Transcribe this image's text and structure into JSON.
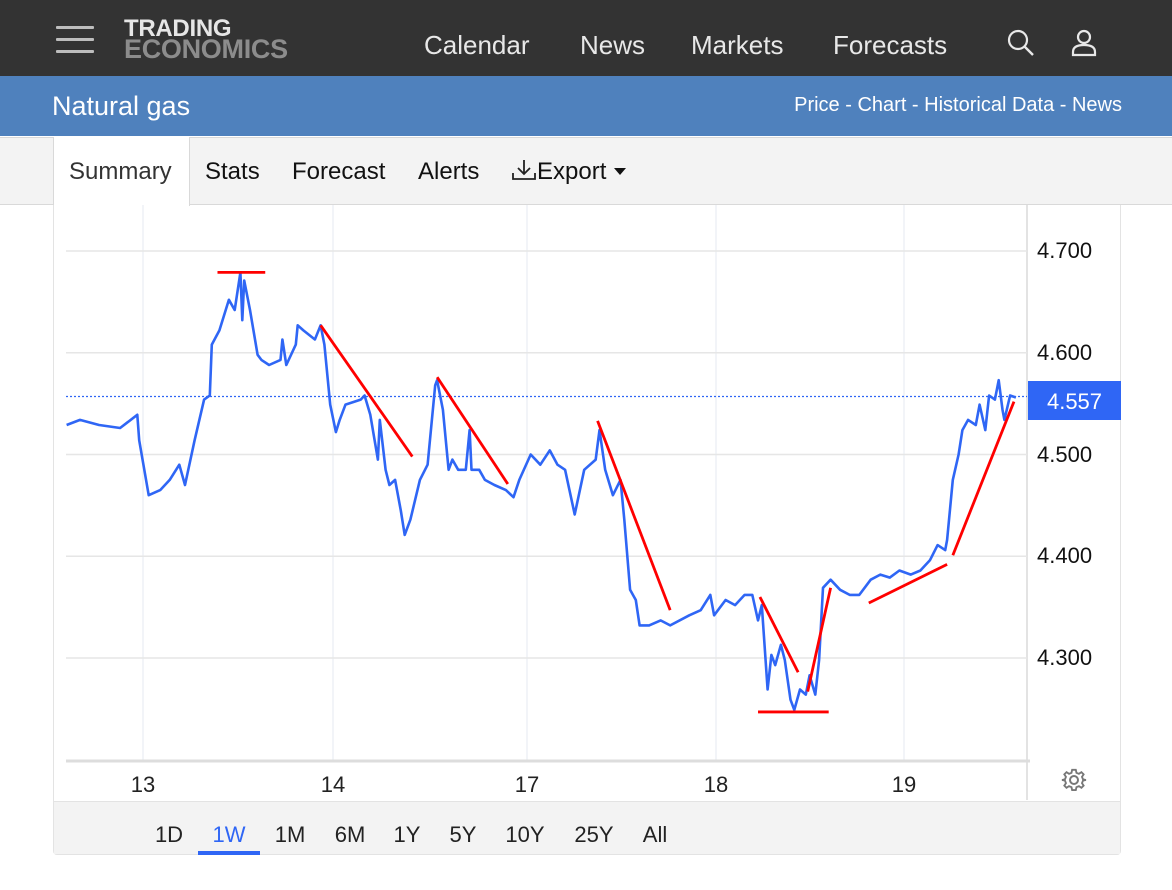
{
  "header": {
    "logo_line1": "TRADING",
    "logo_line2": "ECONOMICS",
    "nav": [
      "Calendar",
      "News",
      "Markets",
      "Forecasts"
    ],
    "icons": [
      "menu-icon",
      "search-icon",
      "user-icon"
    ]
  },
  "titlebar": {
    "title": "Natural gas",
    "links": [
      "Price",
      "Chart",
      "Historical Data",
      "News"
    ],
    "separator": " - "
  },
  "tabs": {
    "items": [
      "Summary",
      "Stats",
      "Forecast",
      "Alerts"
    ],
    "active": "Summary",
    "export_label": "Export"
  },
  "range": {
    "options": [
      "1D",
      "1W",
      "1M",
      "6M",
      "1Y",
      "5Y",
      "10Y",
      "25Y",
      "All"
    ],
    "active": "1W"
  },
  "colors": {
    "header": "#333333",
    "titlebar": "#4f81bd",
    "series": "#2f66f5",
    "annotation": "#ff0000"
  },
  "chart_data": {
    "type": "line",
    "x_ticks": [
      "13",
      "14",
      "17",
      "18",
      "19"
    ],
    "y_ticks": [
      "4.300",
      "4.400",
      "4.500",
      "4.600",
      "4.700"
    ],
    "ylim": [
      4.2,
      4.74
    ],
    "y_axis_side": "right",
    "grid": true,
    "last_value": "4.557",
    "series": [
      {
        "points": [
          [
            12.6,
            4.529
          ],
          [
            12.67,
            4.534
          ],
          [
            12.77,
            4.529
          ],
          [
            12.88,
            4.526
          ],
          [
            12.97,
            4.539
          ],
          [
            12.98,
            4.514
          ],
          [
            13.03,
            4.46
          ],
          [
            13.09,
            4.465
          ],
          [
            13.14,
            4.475
          ],
          [
            13.19,
            4.49
          ],
          [
            13.22,
            4.47
          ],
          [
            13.27,
            4.514
          ],
          [
            13.32,
            4.554
          ],
          [
            13.35,
            4.558
          ],
          [
            13.36,
            4.608
          ],
          [
            13.4,
            4.622
          ],
          [
            13.45,
            4.652
          ],
          [
            13.48,
            4.642
          ],
          [
            13.51,
            4.679
          ],
          [
            13.52,
            4.632
          ],
          [
            13.53,
            4.671
          ],
          [
            13.56,
            4.642
          ],
          [
            13.6,
            4.598
          ],
          [
            13.62,
            4.593
          ],
          [
            13.66,
            4.588
          ],
          [
            13.72,
            4.593
          ],
          [
            13.73,
            4.613
          ],
          [
            13.75,
            4.588
          ],
          [
            13.8,
            4.608
          ],
          [
            13.81,
            4.627
          ],
          [
            13.84,
            4.622
          ],
          [
            13.9,
            4.613
          ],
          [
            13.93,
            4.627
          ],
          [
            13.95,
            4.608
          ],
          [
            13.98,
            4.549
          ],
          [
            14.01,
            4.522
          ],
          [
            14.03,
            4.534
          ],
          [
            14.06,
            4.549
          ],
          [
            14.14,
            4.554
          ],
          [
            14.16,
            4.558
          ],
          [
            14.19,
            4.539
          ],
          [
            14.23,
            4.495
          ],
          [
            14.24,
            4.534
          ],
          [
            14.27,
            4.485
          ],
          [
            14.29,
            4.47
          ],
          [
            14.32,
            4.475
          ],
          [
            14.35,
            4.445
          ],
          [
            14.37,
            4.421
          ],
          [
            14.4,
            4.436
          ],
          [
            14.45,
            4.475
          ],
          [
            14.49,
            4.49
          ],
          [
            14.53,
            4.568
          ],
          [
            14.54,
            4.573
          ],
          [
            14.57,
            4.544
          ],
          [
            14.6,
            4.485
          ],
          [
            14.62,
            4.495
          ],
          [
            14.65,
            4.485
          ],
          [
            14.69,
            4.485
          ],
          [
            14.71,
            4.524
          ],
          [
            14.72,
            4.485
          ],
          [
            14.76,
            4.485
          ],
          [
            14.79,
            4.475
          ],
          [
            14.84,
            4.47
          ],
          [
            14.9,
            4.465
          ],
          [
            14.94,
            4.458
          ],
          [
            14.97,
            4.475
          ],
          [
            17.03,
            4.5
          ],
          [
            17.08,
            4.49
          ],
          [
            17.13,
            4.504
          ],
          [
            17.17,
            4.49
          ],
          [
            17.21,
            4.485
          ],
          [
            17.26,
            4.441
          ],
          [
            17.31,
            4.485
          ],
          [
            17.37,
            4.495
          ],
          [
            17.39,
            4.524
          ],
          [
            17.42,
            4.485
          ],
          [
            17.46,
            4.46
          ],
          [
            17.5,
            4.475
          ],
          [
            17.52,
            4.436
          ],
          [
            17.55,
            4.367
          ],
          [
            17.58,
            4.357
          ],
          [
            17.6,
            4.332
          ],
          [
            17.65,
            4.332
          ],
          [
            17.71,
            4.337
          ],
          [
            17.76,
            4.332
          ],
          [
            17.86,
            4.342
          ],
          [
            17.92,
            4.347
          ],
          [
            17.97,
            4.362
          ],
          [
            17.99,
            4.342
          ],
          [
            18.05,
            4.357
          ],
          [
            18.1,
            4.352
          ],
          [
            18.15,
            4.362
          ],
          [
            18.19,
            4.362
          ],
          [
            18.22,
            4.337
          ],
          [
            18.24,
            4.352
          ],
          [
            18.27,
            4.269
          ],
          [
            18.29,
            4.303
          ],
          [
            18.31,
            4.293
          ],
          [
            18.34,
            4.313
          ],
          [
            18.36,
            4.298
          ],
          [
            18.39,
            4.259
          ],
          [
            18.41,
            4.249
          ],
          [
            18.44,
            4.269
          ],
          [
            18.47,
            4.264
          ],
          [
            18.49,
            4.283
          ],
          [
            18.52,
            4.264
          ],
          [
            18.54,
            4.298
          ],
          [
            18.56,
            4.369
          ],
          [
            18.6,
            4.377
          ],
          [
            18.65,
            4.367
          ],
          [
            18.7,
            4.362
          ],
          [
            18.75,
            4.362
          ],
          [
            18.81,
            4.377
          ],
          [
            18.86,
            4.382
          ],
          [
            18.91,
            4.379
          ],
          [
            18.96,
            4.386
          ],
          [
            19.02,
            4.382
          ],
          [
            19.07,
            4.386
          ],
          [
            19.12,
            4.396
          ],
          [
            19.16,
            4.411
          ],
          [
            19.2,
            4.406
          ],
          [
            19.21,
            4.416
          ],
          [
            19.24,
            4.475
          ],
          [
            19.27,
            4.5
          ],
          [
            19.29,
            4.524
          ],
          [
            19.32,
            4.534
          ],
          [
            19.36,
            4.529
          ],
          [
            19.38,
            4.549
          ],
          [
            19.41,
            4.524
          ],
          [
            19.43,
            4.558
          ],
          [
            19.46,
            4.554
          ],
          [
            19.48,
            4.573
          ],
          [
            19.5,
            4.544
          ],
          [
            19.51,
            4.534
          ],
          [
            19.54,
            4.558
          ],
          [
            19.57,
            4.556
          ]
        ]
      }
    ],
    "annotations": [
      {
        "type": "line",
        "from": [
          13.39,
          4.679
        ],
        "to": [
          13.64,
          4.679
        ]
      },
      {
        "type": "line",
        "from": [
          13.93,
          4.627
        ],
        "to": [
          14.41,
          4.498
        ]
      },
      {
        "type": "line",
        "from": [
          14.54,
          4.576
        ],
        "to": [
          14.91,
          4.471
        ]
      },
      {
        "type": "line",
        "from": [
          17.38,
          4.533
        ],
        "to": [
          17.76,
          4.347
        ]
      },
      {
        "type": "line",
        "from": [
          18.23,
          4.36
        ],
        "to": [
          18.43,
          4.286
        ]
      },
      {
        "type": "line",
        "from": [
          18.22,
          4.247
        ],
        "to": [
          18.59,
          4.247
        ]
      },
      {
        "type": "line",
        "from": [
          18.48,
          4.267
        ],
        "to": [
          18.6,
          4.369
        ]
      },
      {
        "type": "line",
        "from": [
          18.8,
          4.354
        ],
        "to": [
          19.21,
          4.392
        ]
      },
      {
        "type": "line",
        "from": [
          19.24,
          4.401
        ],
        "to": [
          19.56,
          4.552
        ]
      }
    ]
  }
}
